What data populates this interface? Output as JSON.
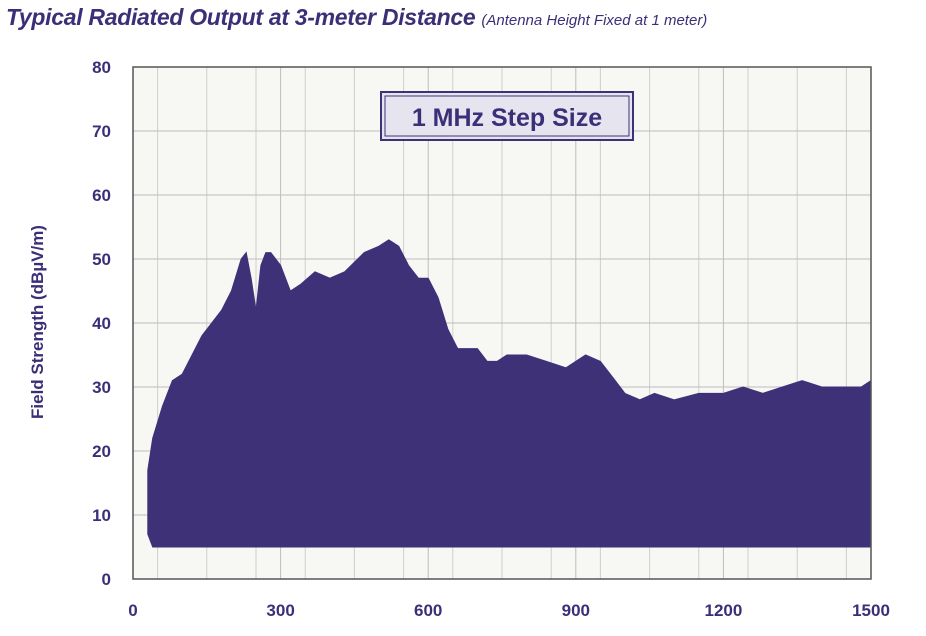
{
  "title": "Typical Radiated Output at 3-meter Distance",
  "subtitle": "(Antenna Height Fixed at 1 meter)",
  "chart_data": {
    "type": "area",
    "title": "Typical Radiated Output at 3-meter Distance",
    "subtitle": "(Antenna Height Fixed at 1 meter)",
    "annotation": "1 MHz Step Size",
    "xlabel": "",
    "ylabel": "Field Strength (dBµV/m)",
    "xlim": [
      0,
      1500
    ],
    "ylim": [
      0,
      80
    ],
    "xticks": [
      0,
      300,
      600,
      900,
      1200,
      1500
    ],
    "yticks": [
      0,
      10,
      20,
      30,
      40,
      50,
      60,
      70,
      80
    ],
    "grid": true,
    "series": [
      {
        "color": "#3f3178",
        "x": [
          30,
          40,
          60,
          80,
          100,
          140,
          180,
          200,
          220,
          230,
          240,
          250,
          260,
          270,
          280,
          300,
          320,
          340,
          370,
          400,
          430,
          470,
          500,
          520,
          540,
          560,
          580,
          600,
          620,
          640,
          660,
          680,
          700,
          720,
          740,
          760,
          800,
          840,
          880,
          920,
          950,
          980,
          1000,
          1030,
          1060,
          1100,
          1150,
          1200,
          1240,
          1280,
          1320,
          1360,
          1400,
          1440,
          1480,
          1500
        ],
        "upper": [
          17,
          22,
          27,
          31,
          32,
          38,
          42,
          45,
          50,
          51,
          47,
          42,
          49,
          51,
          51,
          49,
          45,
          46,
          48,
          47,
          48,
          51,
          52,
          53,
          52,
          49,
          47,
          47,
          44,
          39,
          36,
          36,
          36,
          34,
          34,
          35,
          35,
          34,
          33,
          35,
          34,
          31,
          29,
          28,
          29,
          28,
          29,
          29,
          30,
          29,
          30,
          31,
          30,
          30,
          30,
          31
        ],
        "lower": [
          7,
          5,
          5,
          5,
          5,
          5,
          5,
          5,
          5,
          5,
          5,
          5,
          5,
          5,
          5,
          5,
          5,
          5,
          5,
          5,
          5,
          5,
          5,
          5,
          5,
          5,
          5,
          5,
          5,
          5,
          5,
          5,
          5,
          5,
          5,
          5,
          5,
          5,
          5,
          5,
          5,
          5,
          5,
          5,
          5,
          5,
          5,
          5,
          5,
          5,
          5,
          5,
          5,
          5,
          5,
          5
        ]
      }
    ]
  }
}
